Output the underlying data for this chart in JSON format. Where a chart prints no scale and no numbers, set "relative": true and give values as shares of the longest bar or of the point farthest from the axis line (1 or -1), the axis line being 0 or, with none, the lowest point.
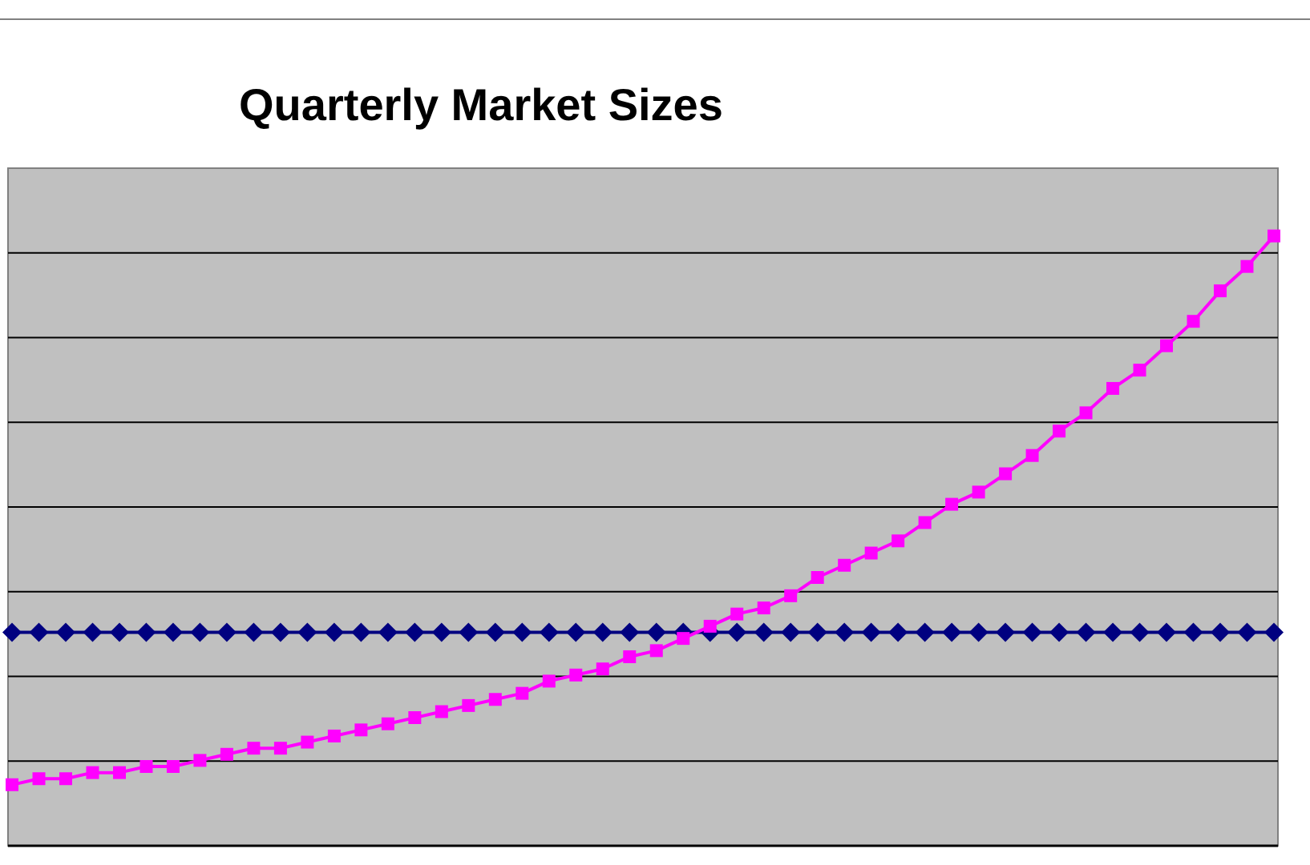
{
  "chart_data": {
    "type": "line",
    "title": "Quarterly Market Sizes",
    "relative": true,
    "grid": "y",
    "categories": [
      null,
      null,
      null,
      null,
      null,
      null,
      null,
      null,
      null,
      null,
      null,
      null,
      null,
      null,
      null,
      null,
      null,
      null,
      null,
      null,
      null,
      null,
      null,
      null,
      null,
      null,
      null,
      null,
      null,
      null,
      null,
      null,
      null,
      null,
      null,
      null,
      null,
      null,
      null,
      null,
      null,
      null,
      null,
      null,
      null,
      null,
      null,
      null
    ],
    "series": [
      {
        "color": "#000080",
        "marker": "diamond",
        "values": [
          0.35,
          0.35,
          0.35,
          0.35,
          0.35,
          0.35,
          0.35,
          0.35,
          0.35,
          0.35,
          0.35,
          0.35,
          0.35,
          0.35,
          0.35,
          0.35,
          0.35,
          0.35,
          0.35,
          0.35,
          0.35,
          0.35,
          0.35,
          0.35,
          0.35,
          0.35,
          0.35,
          0.35,
          0.35,
          0.35,
          0.35,
          0.35,
          0.35,
          0.35,
          0.35,
          0.35,
          0.35,
          0.35,
          0.35,
          0.35,
          0.35,
          0.35,
          0.35,
          0.35,
          0.35,
          0.35,
          0.35,
          0.35
        ]
      },
      {
        "color": "#ff00ff",
        "marker": "square",
        "values": [
          0.1,
          0.11,
          0.11,
          0.12,
          0.12,
          0.13,
          0.13,
          0.14,
          0.15,
          0.16,
          0.16,
          0.17,
          0.18,
          0.19,
          0.2,
          0.21,
          0.22,
          0.23,
          0.24,
          0.25,
          0.27,
          0.28,
          0.29,
          0.31,
          0.32,
          0.34,
          0.36,
          0.38,
          0.39,
          0.41,
          0.44,
          0.46,
          0.48,
          0.5,
          0.53,
          0.56,
          0.58,
          0.61,
          0.64,
          0.68,
          0.71,
          0.75,
          0.78,
          0.82,
          0.86,
          0.91,
          0.95,
          1
        ]
      }
    ]
  }
}
